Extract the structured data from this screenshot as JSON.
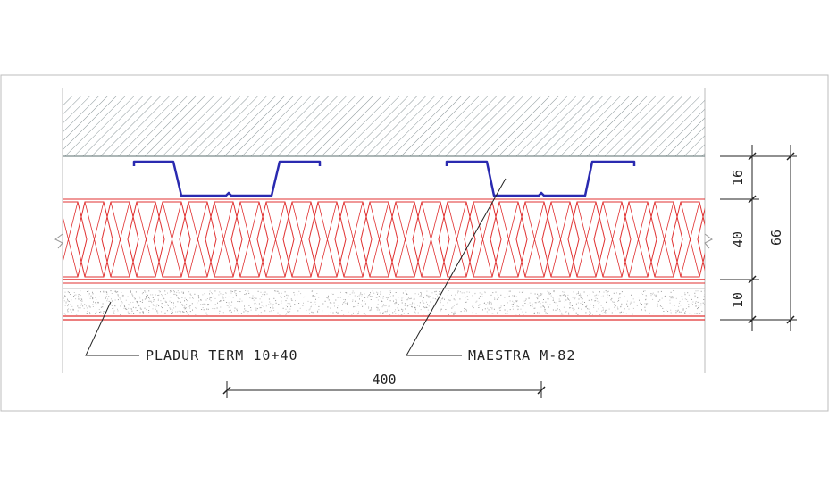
{
  "labels": {
    "pladur": "PLADUR TERM 10+40",
    "maestra": "MAESTRA M-82"
  },
  "dimensions": {
    "spacing": "400",
    "channel": "16",
    "insulation": "40",
    "board": "10",
    "total": "66"
  },
  "colors": {
    "hatch": "#8a9699",
    "profile": "#2a2ab0",
    "insulation": "#e03030",
    "line": "#222222"
  }
}
